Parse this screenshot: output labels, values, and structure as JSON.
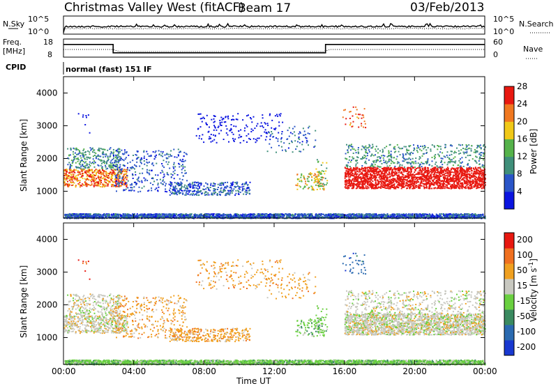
{
  "header": {
    "title": "Christmas Valley West (fitACF)",
    "beam": "Beam 17",
    "date": "03/Feb/2013"
  },
  "side_labels": {
    "nsky": "N.Sky",
    "nsearch": "N.Search",
    "freq": "Freq.",
    "freq_unit": "[MHz]",
    "nave": "Nave",
    "cpid": "CPID",
    "cpid_value": "normal (fast) 151 IF"
  },
  "noise_panel": {
    "left_ticks": [
      "10^5",
      "10^0"
    ],
    "right_ticks": [
      "10^5",
      "10^0"
    ]
  },
  "freq_panel": {
    "left_ticks": [
      "18",
      "8"
    ],
    "right_ticks": [
      "60",
      "0"
    ],
    "freq_steps": [
      {
        "t": 0.0,
        "mhz": 15.0
      },
      {
        "t": 2.83,
        "mhz": 15.0
      },
      {
        "t": 2.83,
        "mhz": 10.4
      },
      {
        "t": 14.93,
        "mhz": 10.4
      },
      {
        "t": 14.93,
        "mhz": 15.0
      },
      {
        "t": 24.0,
        "mhz": 15.0
      }
    ]
  },
  "chart_data": [
    {
      "type": "heatmap",
      "name": "power",
      "ylabel": "Slant Range [km]",
      "ylim": [
        180,
        4500
      ],
      "yticks": [
        "1000",
        "2000",
        "3000",
        "4000"
      ],
      "colorbar_label": "Power [dB]",
      "colorbar_ticks": [
        "4",
        "8",
        "12",
        "16",
        "20",
        "24",
        "28"
      ],
      "colors": [
        "#0a14e0",
        "#2a55c8",
        "#3f8f7a",
        "#55b24a",
        "#f0c818",
        "#f07820",
        "#e81810"
      ]
    },
    {
      "type": "heatmap",
      "name": "velocity",
      "ylabel": "Slant Range [km]",
      "ylim": [
        180,
        4500
      ],
      "yticks": [
        "1000",
        "2000",
        "3000",
        "4000"
      ],
      "colorbar_label": "Velocity [m s^-1]",
      "colorbar_ticks": [
        "200",
        "100",
        "50",
        "15",
        "-15",
        "-50",
        "-100",
        "-200"
      ],
      "colors": [
        "#1838d0",
        "#2a6ab0",
        "#3a8a60",
        "#6ad040",
        "#c8c8c0",
        "#f0a020",
        "#f07020",
        "#e81810"
      ]
    }
  ],
  "time_axis": {
    "ticks": [
      "00:00",
      "04:00",
      "08:00",
      "12:00",
      "16:00",
      "20:00",
      "00:00"
    ],
    "label": "Time UT"
  }
}
